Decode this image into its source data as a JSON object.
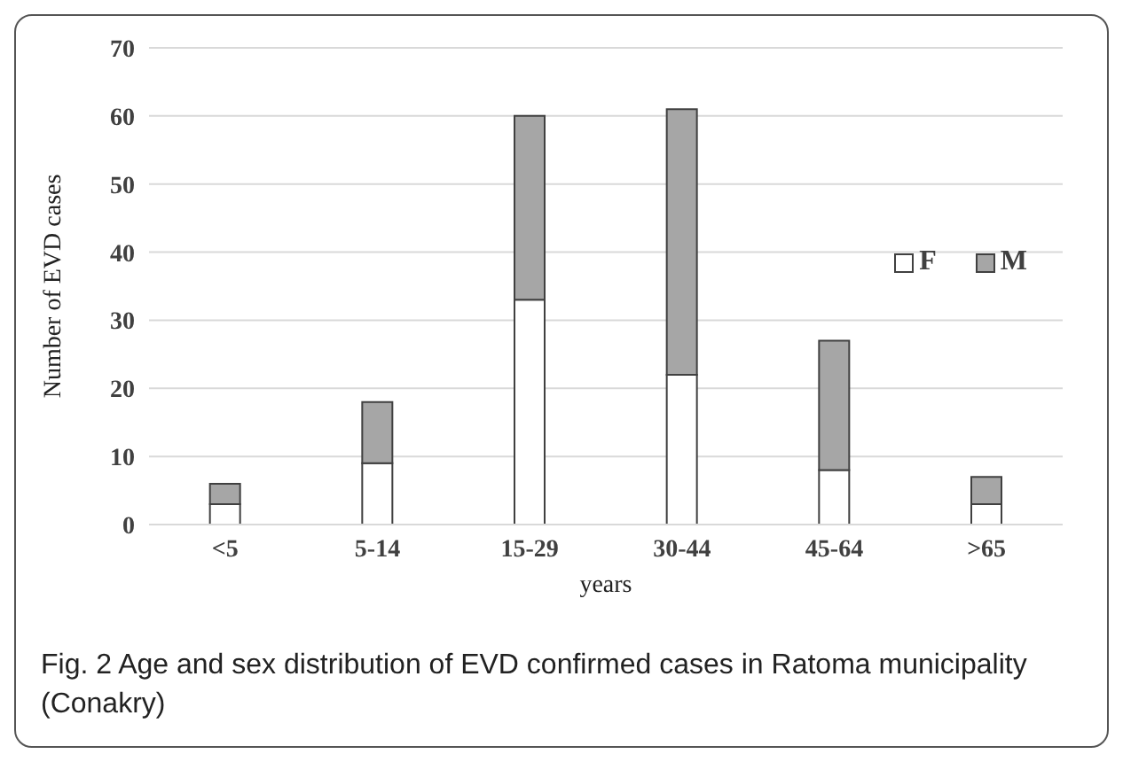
{
  "chart_data": {
    "type": "bar",
    "stacked": true,
    "xlabel": "years",
    "ylabel": "Number of EVD cases",
    "categories": [
      "<5",
      "5-14",
      "15-29",
      "30-44",
      "45-64",
      ">65"
    ],
    "series": [
      {
        "name": "F",
        "color": "#ffffff",
        "values": [
          3,
          9,
          33,
          22,
          8,
          3
        ]
      },
      {
        "name": "M",
        "color": "#a6a6a6",
        "values": [
          3,
          9,
          27,
          39,
          19,
          4
        ]
      }
    ],
    "ylim": [
      0,
      70
    ],
    "yticks": [
      0,
      10,
      20,
      30,
      40,
      50,
      60,
      70
    ],
    "grid": "y",
    "legend": "right",
    "annotations": [
      "Fig. 2 Age and sex distribution of EVD confirmed cases in Ratoma municipality (Conakry)"
    ]
  }
}
